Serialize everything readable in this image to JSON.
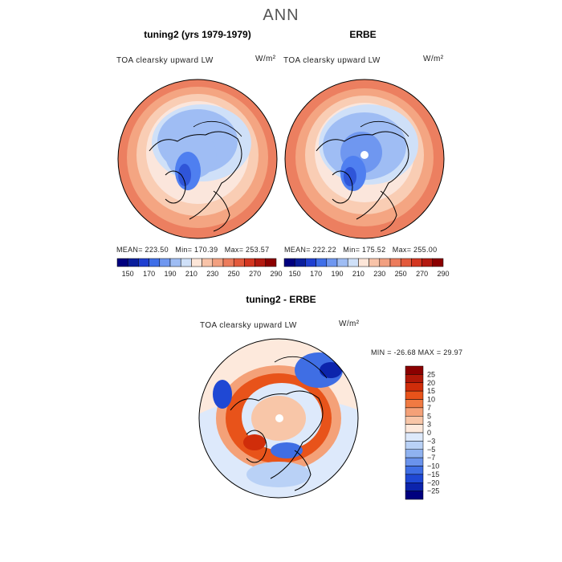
{
  "title": "ANN",
  "panels": [
    {
      "title": "tuning2 (yrs 1979-1979)",
      "variable": "TOA clearsky upward LW",
      "units": "W/m²",
      "stats": {
        "mean": "MEAN= 223.50",
        "min": "Min= 170.39",
        "max": "Max= 253.57"
      }
    },
    {
      "title": "ERBE",
      "variable": "TOA clearsky upward LW",
      "units": "W/m²",
      "stats": {
        "mean": "MEAN= 222.22",
        "min": "Min= 175.52",
        "max": "Max= 255.00"
      }
    }
  ],
  "difference": {
    "title": "tuning2 - ERBE",
    "variable": "TOA clearsky upward LW",
    "units": "W/m²",
    "minmax": "MIN = -26.68 MAX =  29.97"
  },
  "colorbar_abs": {
    "ticks": [
      "150",
      "170",
      "190",
      "210",
      "230",
      "250",
      "270",
      "290"
    ],
    "colors": [
      "#00007f",
      "#0a1e9c",
      "#1f3fd0",
      "#3f6fe8",
      "#6f97f0",
      "#9fbdf4",
      "#cfe0f8",
      "#fde6d8",
      "#f8c3a8",
      "#f2a080",
      "#ec7c5c",
      "#e35a3c",
      "#d33620",
      "#b31a10",
      "#8b0000"
    ]
  },
  "colorbar_diff": {
    "ticks": [
      "25",
      "20",
      "15",
      "10",
      "7",
      "5",
      "3",
      "0",
      "−3",
      "−5",
      "−7",
      "−10",
      "−15",
      "−20",
      "−25"
    ],
    "colors": [
      "#8b0000",
      "#b01808",
      "#d02d0a",
      "#e8531a",
      "#f07a42",
      "#f4a178",
      "#f8c6a8",
      "#fde9dc",
      "#dde9fb",
      "#b9d1f6",
      "#8fb2f0",
      "#6a93ec",
      "#3f6ee4",
      "#1f48d4",
      "#0c24ac",
      "#00007f"
    ]
  }
}
